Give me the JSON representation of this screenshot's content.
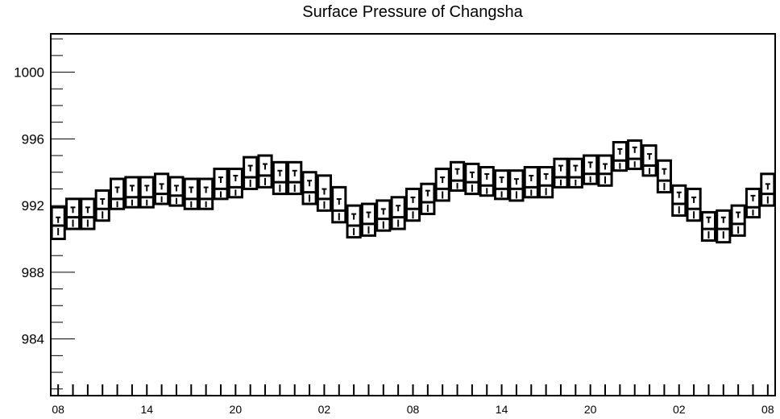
{
  "chart_data": {
    "type": "boxplot",
    "title": "Surface Pressure of Changsha",
    "xlabel": "",
    "ylabel": "",
    "ylim": [
      980.6,
      1002.3
    ],
    "y_ticks": [
      984,
      988,
      992,
      996,
      1000
    ],
    "x_tick_labels": [
      "08",
      "14",
      "20",
      "02",
      "08",
      "14",
      "20",
      "02",
      "08"
    ],
    "grid": false,
    "legend": "none",
    "series": [
      {
        "boxes": [
          {
            "x": 0,
            "q1": 990.0,
            "median": 990.8,
            "q3": 991.9,
            "mean": 991.1
          },
          {
            "x": 1,
            "q1": 990.6,
            "median": 991.3,
            "q3": 992.4,
            "mean": 991.7
          },
          {
            "x": 2,
            "q1": 990.6,
            "median": 991.3,
            "q3": 992.4,
            "mean": 991.7
          },
          {
            "x": 3,
            "q1": 991.1,
            "median": 991.8,
            "q3": 992.9,
            "mean": 992.2
          },
          {
            "x": 4,
            "q1": 991.8,
            "median": 992.4,
            "q3": 993.6,
            "mean": 992.9
          },
          {
            "x": 5,
            "q1": 991.9,
            "median": 992.5,
            "q3": 993.7,
            "mean": 993.0
          },
          {
            "x": 6,
            "q1": 991.9,
            "median": 992.5,
            "q3": 993.7,
            "mean": 993.0
          },
          {
            "x": 7,
            "q1": 992.1,
            "median": 992.7,
            "q3": 993.9,
            "mean": 993.1
          },
          {
            "x": 8,
            "q1": 992.0,
            "median": 992.6,
            "q3": 993.7,
            "mean": 993.0
          },
          {
            "x": 9,
            "q1": 991.8,
            "median": 992.4,
            "q3": 993.6,
            "mean": 992.9
          },
          {
            "x": 10,
            "q1": 991.8,
            "median": 992.4,
            "q3": 993.6,
            "mean": 992.9
          },
          {
            "x": 11,
            "q1": 992.4,
            "median": 993.0,
            "q3": 994.2,
            "mean": 993.5
          },
          {
            "x": 12,
            "q1": 992.5,
            "median": 993.1,
            "q3": 994.2,
            "mean": 993.6
          },
          {
            "x": 13,
            "q1": 993.0,
            "median": 993.7,
            "q3": 994.9,
            "mean": 994.2
          },
          {
            "x": 14,
            "q1": 993.1,
            "median": 993.8,
            "q3": 995.0,
            "mean": 994.3
          },
          {
            "x": 15,
            "q1": 992.7,
            "median": 993.4,
            "q3": 994.6,
            "mean": 993.9
          },
          {
            "x": 16,
            "q1": 992.7,
            "median": 993.4,
            "q3": 994.6,
            "mean": 993.9
          },
          {
            "x": 17,
            "q1": 992.1,
            "median": 992.8,
            "q3": 994.0,
            "mean": 993.3
          },
          {
            "x": 18,
            "q1": 991.7,
            "median": 992.4,
            "q3": 993.8,
            "mean": 992.8
          },
          {
            "x": 19,
            "q1": 991.0,
            "median": 991.7,
            "q3": 993.1,
            "mean": 992.2
          },
          {
            "x": 20,
            "q1": 990.1,
            "median": 990.8,
            "q3": 992.0,
            "mean": 991.3
          },
          {
            "x": 21,
            "q1": 990.2,
            "median": 990.9,
            "q3": 992.1,
            "mean": 991.4
          },
          {
            "x": 22,
            "q1": 990.5,
            "median": 991.2,
            "q3": 992.3,
            "mean": 991.6
          },
          {
            "x": 23,
            "q1": 990.6,
            "median": 991.3,
            "q3": 992.5,
            "mean": 991.8
          },
          {
            "x": 24,
            "q1": 991.1,
            "median": 991.8,
            "q3": 993.0,
            "mean": 992.3
          },
          {
            "x": 25,
            "q1": 991.5,
            "median": 992.2,
            "q3": 993.3,
            "mean": 992.7
          },
          {
            "x": 26,
            "q1": 992.3,
            "median": 993.0,
            "q3": 994.2,
            "mean": 993.5
          },
          {
            "x": 27,
            "q1": 992.9,
            "median": 993.5,
            "q3": 994.6,
            "mean": 994.0
          },
          {
            "x": 28,
            "q1": 992.7,
            "median": 993.4,
            "q3": 994.5,
            "mean": 993.8
          },
          {
            "x": 29,
            "q1": 992.6,
            "median": 993.2,
            "q3": 994.3,
            "mean": 993.7
          },
          {
            "x": 30,
            "q1": 992.4,
            "median": 993.0,
            "q3": 994.1,
            "mean": 993.5
          },
          {
            "x": 31,
            "q1": 992.3,
            "median": 993.0,
            "q3": 994.1,
            "mean": 993.4
          },
          {
            "x": 32,
            "q1": 992.5,
            "median": 993.1,
            "q3": 994.3,
            "mean": 993.6
          },
          {
            "x": 33,
            "q1": 992.5,
            "median": 993.2,
            "q3": 994.3,
            "mean": 993.7
          },
          {
            "x": 34,
            "q1": 993.1,
            "median": 993.7,
            "q3": 994.8,
            "mean": 994.2
          },
          {
            "x": 35,
            "q1": 993.1,
            "median": 993.7,
            "q3": 994.8,
            "mean": 994.2
          },
          {
            "x": 36,
            "q1": 993.3,
            "median": 993.9,
            "q3": 995.0,
            "mean": 994.4
          },
          {
            "x": 37,
            "q1": 993.2,
            "median": 993.9,
            "q3": 995.0,
            "mean": 994.3
          },
          {
            "x": 38,
            "q1": 994.1,
            "median": 994.7,
            "q3": 995.8,
            "mean": 995.2
          },
          {
            "x": 39,
            "q1": 994.2,
            "median": 994.8,
            "q3": 995.9,
            "mean": 995.3
          },
          {
            "x": 40,
            "q1": 993.8,
            "median": 994.4,
            "q3": 995.6,
            "mean": 994.9
          },
          {
            "x": 41,
            "q1": 992.8,
            "median": 993.5,
            "q3": 994.7,
            "mean": 994.0
          },
          {
            "x": 42,
            "q1": 991.4,
            "median": 992.1,
            "q3": 993.2,
            "mean": 992.6
          },
          {
            "x": 43,
            "q1": 991.1,
            "median": 991.8,
            "q3": 993.0,
            "mean": 992.3
          },
          {
            "x": 44,
            "q1": 989.9,
            "median": 990.6,
            "q3": 991.6,
            "mean": 991.1
          },
          {
            "x": 45,
            "q1": 989.8,
            "median": 990.6,
            "q3": 991.7,
            "mean": 991.1
          },
          {
            "x": 46,
            "q1": 990.2,
            "median": 990.9,
            "q3": 992.0,
            "mean": 991.4
          },
          {
            "x": 47,
            "q1": 991.3,
            "median": 991.9,
            "q3": 993.0,
            "mean": 992.4
          },
          {
            "x": 48,
            "q1": 992.0,
            "median": 992.7,
            "q3": 993.9,
            "mean": 993.1
          }
        ]
      }
    ]
  }
}
